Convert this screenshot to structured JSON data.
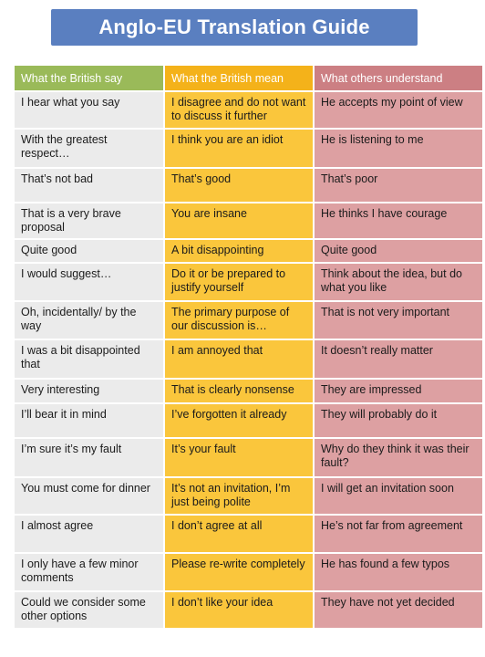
{
  "title": "Anglo-EU Translation Guide",
  "colors": {
    "banner": "#5a7fc0",
    "british_say_header": "#9aba59",
    "british_mean_header": "#f4b21a",
    "others_understand_header": "#cc7f83",
    "british_say_cell": "#ebebeb",
    "british_mean_cell": "#fac63c",
    "others_understand_cell": "#dda0a2"
  },
  "headers": [
    "What the British say",
    "What the British mean",
    "What others understand"
  ],
  "rows": [
    {
      "say": "I hear what you say",
      "mean": "I disagree and do not want to discuss it further",
      "understand": "He accepts my point of view"
    },
    {
      "say": "With the greatest respect…",
      "mean": "I think you are an idiot",
      "understand": "He is listening to me"
    },
    {
      "say": "That’s not bad",
      "mean": "That’s good",
      "understand": "That’s poor"
    },
    {
      "say": "That is a very brave proposal",
      "mean": "You are insane",
      "understand": "He thinks I have courage"
    },
    {
      "say": "Quite good",
      "mean": "A bit disappointing",
      "understand": "Quite good"
    },
    {
      "say": "I would suggest…",
      "mean": "Do it or be prepared to justify yourself",
      "understand": "Think about the idea, but do what you like"
    },
    {
      "say": "Oh, incidentally/ by the way",
      "mean": "The primary purpose of our discussion is…",
      "understand": "That is not very important"
    },
    {
      "say": "I was a bit disappointed that",
      "mean": "I am annoyed that",
      "understand": "It doesn’t really matter"
    },
    {
      "say": "Very interesting",
      "mean": "That is clearly nonsense",
      "understand": "They are impressed"
    },
    {
      "say": "I’ll bear it in mind",
      "mean": "I’ve forgotten it already",
      "understand": "They will probably do it"
    },
    {
      "say": "I’m sure it’s my fault",
      "mean": "It’s your fault",
      "understand": "Why do they think it was their fault?"
    },
    {
      "say": "You must come for dinner",
      "mean": "It’s not an invitation, I’m just being polite",
      "understand": "I will get an invitation soon"
    },
    {
      "say": "I almost agree",
      "mean": "I don’t agree at all",
      "understand": "He’s not far from agreement"
    },
    {
      "say": "I only have a few minor comments",
      "mean": "Please re-write completely",
      "understand": "He has found a few typos"
    },
    {
      "say": "Could we consider some other options",
      "mean": "I don’t like your idea",
      "understand": "They have not yet decided"
    }
  ]
}
